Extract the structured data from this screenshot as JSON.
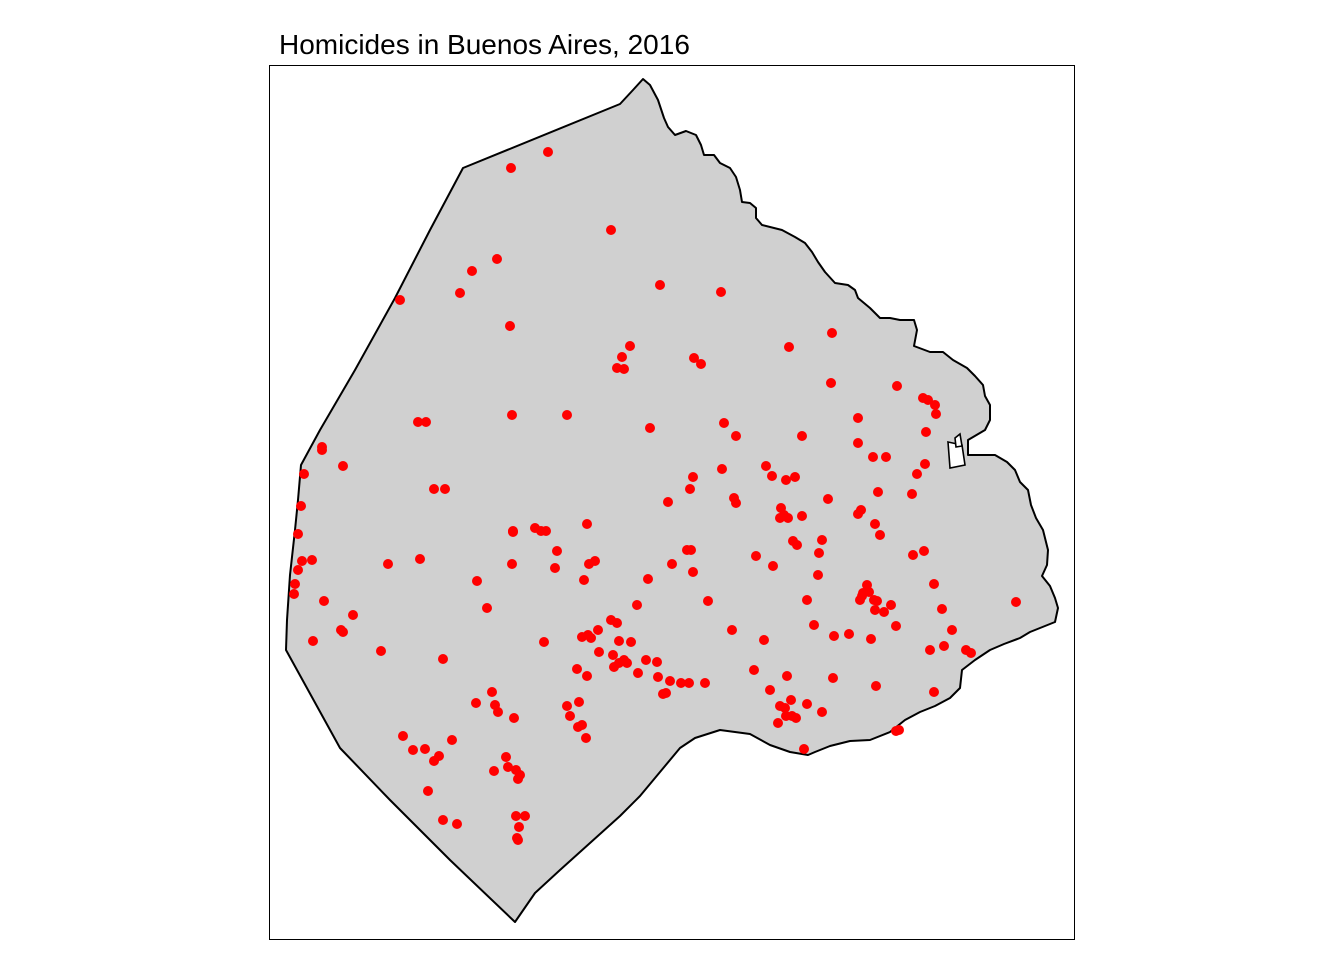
{
  "map": {
    "title": "Homicides in Buenos Aires, 2016",
    "region": "Buenos Aires city boundary",
    "fill_color": "#d0d0d0",
    "border_color": "#000000",
    "point_color": "#ff0000",
    "point_count": 228
  }
}
